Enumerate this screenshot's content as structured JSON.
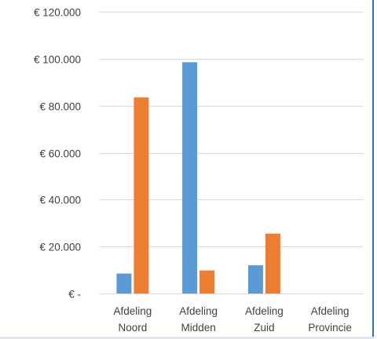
{
  "chart_data": {
    "type": "bar",
    "categories": [
      [
        "Afdeling",
        "Noord"
      ],
      [
        "Afdeling",
        "Midden"
      ],
      [
        "Afdeling",
        "Zuid"
      ],
      [
        "Afdeling",
        "Provincie"
      ]
    ],
    "series": [
      {
        "color": "#5b9bd5",
        "values": [
          8500,
          98500,
          12000,
          0
        ]
      },
      {
        "color": "#ed7d31",
        "values": [
          83500,
          9800,
          25500,
          0
        ]
      }
    ],
    "yticks": [
      0,
      20000,
      40000,
      60000,
      80000,
      100000,
      120000
    ],
    "ytick_labels": [
      "€ -",
      "€ 20.000",
      "€ 40.000",
      "€ 60.000",
      "€ 80.000",
      "€ 100.000",
      "€ 120.000"
    ],
    "ylim": [
      0,
      120000
    ],
    "grid": true,
    "legend": "none",
    "gridline_color": "#d9d9d9"
  }
}
